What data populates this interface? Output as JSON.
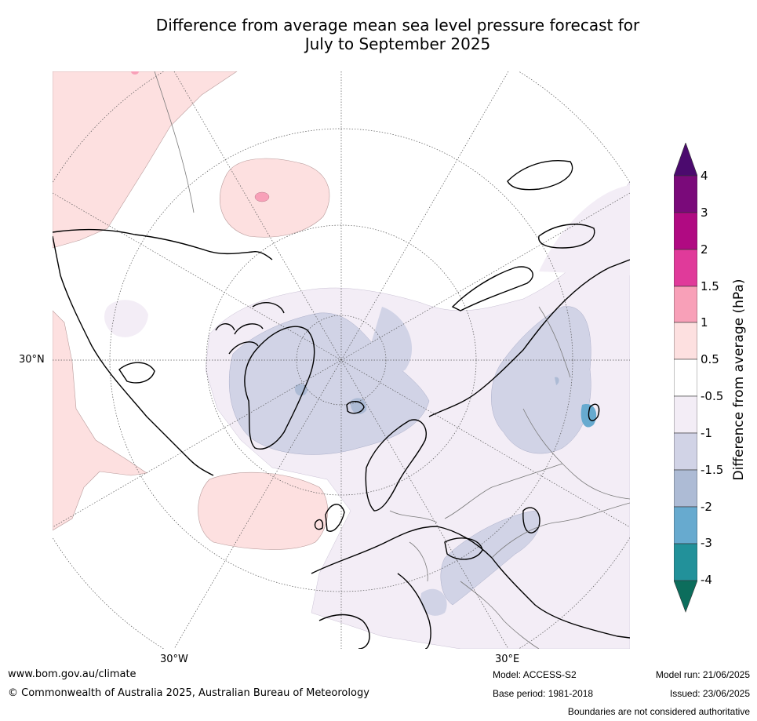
{
  "title_line1": "Difference from average mean sea level pressure forecast for",
  "title_line2": "July to September 2025",
  "map_labels": {
    "lat_30n": "30°N",
    "lon_30w": "30°W",
    "lon_30e": "30°E"
  },
  "colorbar": {
    "title": "Difference from average (hPa)",
    "levels": [
      "4",
      "3",
      "2",
      "1.5",
      "1",
      "0.5",
      "-0.5",
      "-1",
      "-1.5",
      "-2",
      "-3",
      "-4"
    ],
    "colors": {
      "above_4": "#4b0a6e",
      "3_to_4": "#7a0a7a",
      "2_to_3": "#b00a82",
      "1_5_to_2": "#e03a9a",
      "1_to_1_5": "#f8a0b8",
      "0_5_to_1": "#fde0e0",
      "neutral": "#ffffff",
      "m1_to_m0_5": "#f3edf6",
      "m1_5_to_m1": "#d1d3e6",
      "m2_to_m1_5": "#adbbd5",
      "m3_to_m2": "#67aacf",
      "m4_to_m3": "#22919a",
      "below_m4": "#0c6d5c"
    }
  },
  "footer": {
    "website": "www.bom.gov.au/climate",
    "copyright": "© Commonwealth of Australia 2025, Australian Bureau of Meteorology",
    "model": "Model: ACCESS-S2",
    "base_period": "Base period: 1981-2018",
    "model_run": "Model run: 21/06/2025",
    "issued": "Issued: 23/06/2025",
    "disclaimer": "Boundaries are not considered authoritative"
  }
}
